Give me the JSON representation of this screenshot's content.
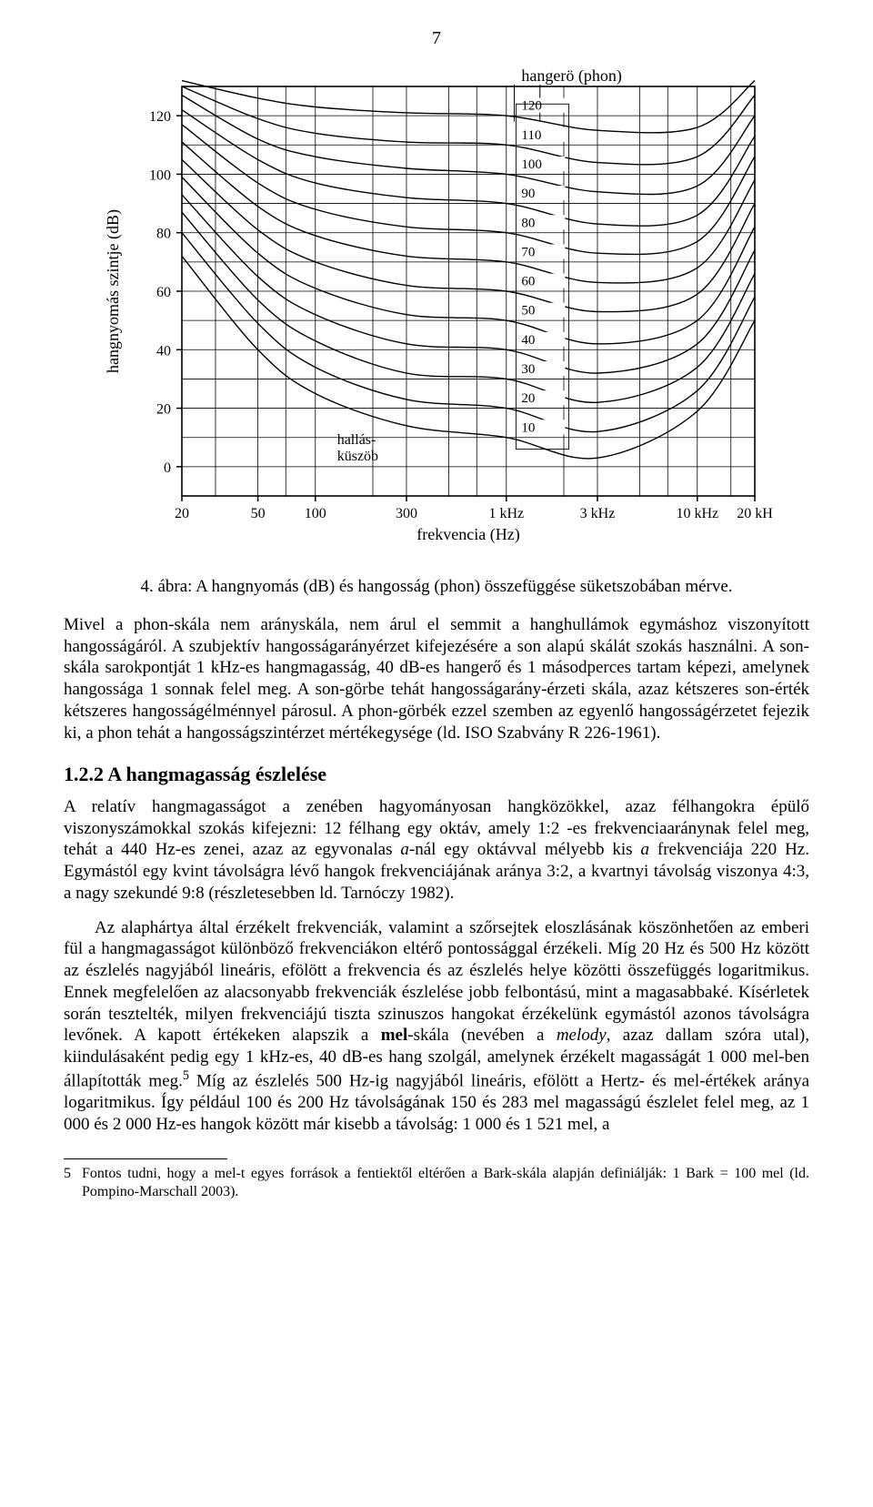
{
  "page_number": "7",
  "figure": {
    "type": "line_chart_equal_loudness",
    "background_color": "#ffffff",
    "axis_color": "#000000",
    "grid_color": "#000000",
    "line_color": "#000000",
    "line_width": 1.4,
    "x_axis": {
      "label": "frekvencia (Hz)",
      "scale": "log",
      "ticks_hz": [
        20,
        50,
        100,
        300,
        1000,
        3000,
        10000,
        20000
      ],
      "tick_labels": [
        "20",
        "50",
        "100",
        "300",
        "1 kHz",
        "3 kHz",
        "10 kHz",
        "20 kH"
      ],
      "label_fontsize": 18,
      "tick_fontsize": 16
    },
    "y_axis": {
      "label": "hangnyomás szintje (dB)",
      "scale": "linear",
      "lim": [
        -10,
        130
      ],
      "ticks": [
        0,
        20,
        40,
        60,
        80,
        100,
        120
      ],
      "label_fontsize": 18,
      "tick_fontsize": 16
    },
    "phon_label": "hangerö (phon)",
    "phon_levels": [
      10,
      20,
      30,
      40,
      50,
      60,
      70,
      80,
      90,
      100,
      110,
      120
    ],
    "phon_level_fontsize": 15,
    "hearing_threshold_label": "hallás-\nküszöb",
    "curves": {
      "10": {
        "f": [
          20,
          50,
          100,
          300,
          1000,
          3000,
          10000,
          20000
        ],
        "spl": [
          72,
          40,
          25,
          14,
          10,
          3,
          19,
          50
        ]
      },
      "20": {
        "f": [
          20,
          50,
          100,
          300,
          1000,
          3000,
          10000,
          20000
        ],
        "spl": [
          80,
          49,
          34,
          23,
          20,
          12,
          26,
          58
        ]
      },
      "30": {
        "f": [
          20,
          50,
          100,
          300,
          1000,
          3000,
          10000,
          20000
        ],
        "spl": [
          87,
          57,
          43,
          32,
          30,
          22,
          34,
          66
        ]
      },
      "40": {
        "f": [
          20,
          50,
          100,
          300,
          1000,
          3000,
          10000,
          20000
        ],
        "spl": [
          93,
          65,
          52,
          42,
          40,
          32,
          42,
          74
        ]
      },
      "50": {
        "f": [
          20,
          50,
          100,
          300,
          1000,
          3000,
          10000,
          20000
        ],
        "spl": [
          99,
          73,
          61,
          52,
          50,
          42,
          50,
          82
        ]
      },
      "60": {
        "f": [
          20,
          50,
          100,
          300,
          1000,
          3000,
          10000,
          20000
        ],
        "spl": [
          105,
          81,
          70,
          62,
          60,
          53,
          59,
          90
        ]
      },
      "70": {
        "f": [
          20,
          50,
          100,
          300,
          1000,
          3000,
          10000,
          20000
        ],
        "spl": [
          111,
          89,
          79,
          72,
          70,
          63,
          68,
          98
        ]
      },
      "80": {
        "f": [
          20,
          50,
          100,
          300,
          1000,
          3000,
          10000,
          20000
        ],
        "spl": [
          117,
          97,
          88,
          82,
          80,
          73,
          77,
          106
        ]
      },
      "90": {
        "f": [
          20,
          50,
          100,
          300,
          1000,
          3000,
          10000,
          20000
        ],
        "spl": [
          122,
          105,
          97,
          92,
          90,
          83,
          86,
          113
        ]
      },
      "100": {
        "f": [
          20,
          50,
          100,
          300,
          1000,
          3000,
          10000,
          20000
        ],
        "spl": [
          127,
          112,
          106,
          102,
          100,
          94,
          96,
          120
        ]
      },
      "110": {
        "f": [
          20,
          50,
          100,
          300,
          1000,
          3000,
          10000,
          20000
        ],
        "spl": [
          130,
          119,
          114,
          111,
          110,
          104,
          106,
          127
        ]
      },
      "120": {
        "f": [
          20,
          50,
          100,
          300,
          1000,
          3000,
          10000,
          20000
        ],
        "spl": [
          132,
          126,
          123,
          121,
          120,
          115,
          116,
          132
        ]
      }
    }
  },
  "caption": "4. ábra: A hangnyomás (dB) és hangosság (phon) összefüggése süketszobában mérve.",
  "para1": "Mivel a phon-skála nem arányskála, nem árul el semmit a hanghullámok egymáshoz viszonyított hangosságáról. A szubjektív hangosságarányérzet kifejezésére a son alapú skálát szokás használni. A son-skála sarokpontját 1 kHz-es hangmagasság, 40 dB-es hangerő és 1 másodperces tartam képezi, amelynek hangossága 1 sonnak felel meg. A son-görbe tehát hangosságarány-érzeti skála, azaz kétszeres son-érték kétszeres hangosságélménnyel párosul. A phon-görbék ezzel szemben az egyenlő hangosságérzetet fejezik ki, a phon tehát a hangosságszintérzet mértékegysége (ld. ISO Szabvány R 226-1961).",
  "section_heading": "1.2.2  A hangmagasság észlelése",
  "para2_html": "A relatív hangmagasságot a zenében hagyományosan hangközökkel, azaz félhangokra épülő viszonyszámokkal szokás kifejezni: 12 félhang egy oktáv, amely 1:2 -es frekvenciaaránynak felel meg, tehát a 440 Hz-es zenei, azaz az egyvonalas <i>a</i>-nál egy oktávval mélyebb kis <i>a</i> frekvenciája 220 Hz. Egymástól egy kvint távolságra lévő hangok frekvenciájának aránya 3:2, a kvartnyi távolság viszonya 4:3, a nagy szekundé 9:8 (részletesebben ld. Tarnóczy 1982).",
  "para3_html": "Az alaphártya által érzékelt frekvenciák, valamint a szőrsejtek eloszlásának köszönhetően az emberi fül a hangmagasságot különböző frekvenciákon eltérő pontossággal érzékeli. Míg 20 Hz és 500 Hz között az észlelés nagyjából lineáris, efölött a frekvencia és az észlelés helye közötti összefüggés logaritmikus. Ennek megfelelően az alacsonyabb frekvenciák észlelése jobb felbontású, mint a magasabbaké. Kísérletek során tesztelték, milyen frekvenciájú tiszta szinuszos hangokat érzékelünk egymástól azonos távolságra levőnek. A kapott értékeken alapszik a <b>mel</b>-skála (nevében a <i>melody</i>, azaz dallam szóra utal), kiindulásaként pedig egy 1 kHz-es, 40 dB-es hang szolgál, amelynek érzékelt magasságát 1 000 mel-ben állapították meg.<sup>5</sup> Míg az észlelés 500 Hz-ig nagyjából lineáris, efölött a Hertz- és mel-értékek aránya logaritmikus. Így például 100 és 200 Hz távolságának 150 és 283 mel magasságú észlelet felel meg, az 1 000 és 2 000 Hz-es hangok között már kisebb a távolság: 1 000 és 1 521 mel, a",
  "footnote_num": "5",
  "footnote_text": "Fontos tudni, hogy a mel-t egyes források a fentiektől eltérően a Bark-skála alapján definiálják: 1 Bark = 100 mel (ld. Pompino-Marschall 2003)."
}
